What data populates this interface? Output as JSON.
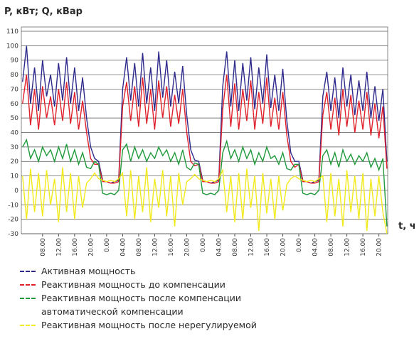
{
  "chart_data": {
    "type": "line",
    "title": "P, кВт; Q, кВар",
    "x_label": "t, ч",
    "xlim": [
      2.7,
      94.2
    ],
    "xticks": [
      {
        "value": 8,
        "label": "08.00"
      },
      {
        "value": 12,
        "label": "12.00"
      },
      {
        "value": 16,
        "label": "16.00"
      },
      {
        "value": 20,
        "label": "20.00"
      },
      {
        "value": 24,
        "label": "0.00"
      },
      {
        "value": 28,
        "label": "04.00"
      },
      {
        "value": 32,
        "label": "08.00"
      },
      {
        "value": 36,
        "label": "12.00"
      },
      {
        "value": 40,
        "label": "16.00"
      },
      {
        "value": 44,
        "label": "20.00"
      },
      {
        "value": 48,
        "label": "0.00"
      },
      {
        "value": 52,
        "label": "04.00"
      },
      {
        "value": 56,
        "label": "08.00"
      },
      {
        "value": 60,
        "label": "12.00"
      },
      {
        "value": 64,
        "label": "16.00"
      },
      {
        "value": 68,
        "label": "20.00"
      },
      {
        "value": 72,
        "label": "0.00"
      },
      {
        "value": 76,
        "label": "04.00"
      },
      {
        "value": 80,
        "label": "08.00"
      },
      {
        "value": 84,
        "label": "12.00"
      },
      {
        "value": 88,
        "label": "16.00"
      },
      {
        "value": 92,
        "label": "20.00"
      }
    ],
    "ylim": [
      -30,
      110
    ],
    "yticks": [
      -30,
      -20,
      -10,
      0,
      10,
      20,
      30,
      40,
      50,
      60,
      70,
      80,
      90,
      100,
      110
    ],
    "grid": true,
    "x": [
      3,
      4,
      5,
      6,
      7,
      8,
      9,
      10,
      11,
      12,
      13,
      14,
      15,
      16,
      17,
      18,
      19,
      20,
      21,
      22,
      23,
      24,
      25,
      26,
      27,
      28,
      29,
      30,
      31,
      32,
      33,
      34,
      35,
      36,
      37,
      38,
      39,
      40,
      41,
      42,
      43,
      44,
      45,
      46,
      47,
      48,
      49,
      50,
      51,
      52,
      53,
      54,
      55,
      56,
      57,
      58,
      59,
      60,
      61,
      62,
      63,
      64,
      65,
      66,
      67,
      68,
      69,
      70,
      71,
      72,
      73,
      74,
      75,
      76,
      77,
      78,
      79,
      80,
      81,
      82,
      83,
      84,
      85,
      86,
      87,
      88,
      89,
      90,
      91,
      92,
      93,
      94
    ],
    "series": [
      {
        "name": "Активная мощность",
        "color": "#2e2a8c",
        "values": [
          75,
          100,
          60,
          85,
          55,
          90,
          65,
          80,
          58,
          88,
          62,
          92,
          60,
          85,
          55,
          78,
          50,
          30,
          22,
          20,
          7,
          6,
          5,
          6,
          7,
          70,
          92,
          62,
          88,
          58,
          95,
          60,
          85,
          55,
          96,
          64,
          90,
          58,
          82,
          60,
          86,
          52,
          28,
          21,
          20,
          7,
          6,
          5,
          6,
          7,
          72,
          96,
          58,
          90,
          55,
          88,
          62,
          92,
          56,
          85,
          60,
          94,
          57,
          80,
          55,
          84,
          48,
          26,
          20,
          20,
          7,
          6,
          5,
          6,
          7,
          65,
          82,
          55,
          78,
          50,
          85,
          58,
          80,
          52,
          76,
          55,
          82,
          50,
          72,
          48,
          70,
          20
        ]
      },
      {
        "name": "Реактивная мощность до компенсации",
        "color": "#e0202a",
        "values": [
          60,
          80,
          45,
          70,
          42,
          72,
          50,
          65,
          45,
          70,
          48,
          75,
          46,
          68,
          42,
          62,
          40,
          22,
          18,
          18,
          6,
          6,
          5,
          5,
          6,
          58,
          75,
          48,
          72,
          44,
          78,
          46,
          70,
          42,
          76,
          50,
          72,
          44,
          66,
          46,
          70,
          40,
          20,
          17,
          18,
          6,
          6,
          5,
          5,
          6,
          56,
          80,
          44,
          74,
          42,
          70,
          48,
          76,
          42,
          68,
          46,
          78,
          44,
          64,
          42,
          68,
          38,
          20,
          16,
          18,
          6,
          6,
          5,
          5,
          6,
          52,
          68,
          42,
          64,
          38,
          70,
          44,
          66,
          40,
          62,
          42,
          68,
          38,
          60,
          36,
          58,
          15
        ]
      },
      {
        "name": "Реактивная мощность после компенсации автоматической компенсации",
        "color": "#1f9a3a",
        "values": [
          30,
          35,
          22,
          28,
          20,
          30,
          24,
          28,
          20,
          30,
          22,
          32,
          20,
          28,
          18,
          26,
          16,
          15,
          20,
          18,
          -2,
          -3,
          -2,
          -3,
          0,
          28,
          32,
          20,
          30,
          22,
          28,
          20,
          26,
          22,
          30,
          24,
          28,
          20,
          26,
          18,
          28,
          16,
          14,
          19,
          18,
          -2,
          -3,
          -2,
          -3,
          0,
          26,
          34,
          22,
          28,
          20,
          30,
          22,
          28,
          18,
          26,
          20,
          30,
          22,
          24,
          18,
          26,
          15,
          14,
          18,
          18,
          -2,
          -3,
          -2,
          -3,
          0,
          24,
          28,
          18,
          26,
          16,
          28,
          20,
          25,
          18,
          24,
          20,
          26,
          16,
          22,
          14,
          22,
          -25
        ]
      },
      {
        "name": "Реактивная мощность после нерегулируемой",
        "color": "#f2ea1a",
        "values": [
          10,
          -20,
          15,
          -15,
          12,
          -18,
          14,
          -10,
          8,
          -22,
          16,
          -15,
          12,
          -20,
          10,
          -12,
          5,
          8,
          12,
          8,
          7,
          6,
          7,
          6,
          8,
          12,
          -18,
          14,
          -20,
          10,
          -15,
          16,
          -22,
          8,
          -12,
          14,
          -18,
          10,
          -25,
          12,
          -10,
          6,
          8,
          11,
          8,
          7,
          6,
          7,
          6,
          8,
          14,
          -15,
          10,
          -22,
          12,
          -20,
          15,
          -12,
          10,
          -28,
          12,
          -16,
          8,
          -20,
          10,
          -14,
          4,
          8,
          10,
          8,
          7,
          6,
          7,
          6,
          8,
          10,
          -22,
          12,
          -18,
          8,
          -25,
          14,
          -15,
          10,
          -20,
          12,
          -28,
          8,
          -18,
          10,
          -15,
          -30
        ]
      }
    ]
  }
}
